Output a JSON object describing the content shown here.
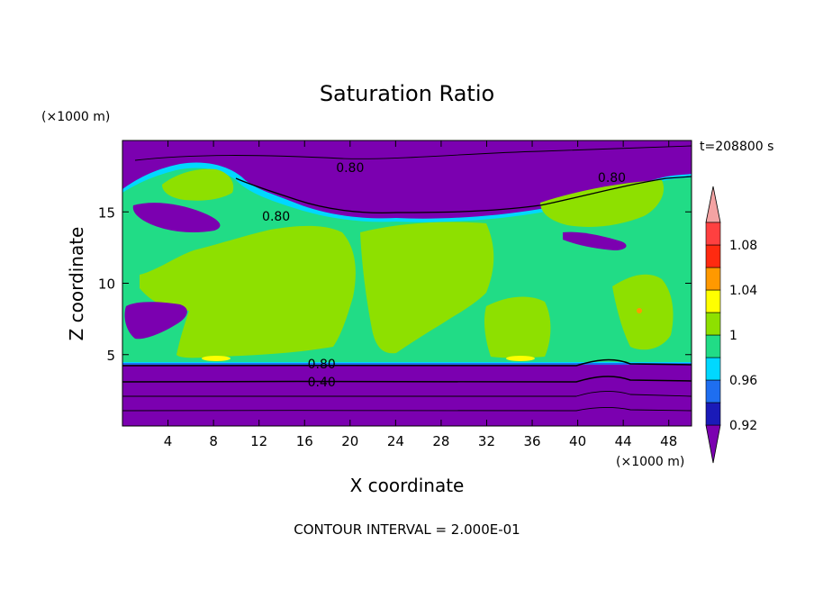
{
  "chart_data": {
    "type": "heatmap",
    "title": "Saturation Ratio",
    "xlabel": "X coordinate",
    "ylabel": "Z coordinate",
    "x_unit": "(×1000 m)",
    "y_unit": "(×1000 m)",
    "time_label": "t=208800 s",
    "footer": "CONTOUR INTERVAL = 2.000E-01",
    "xlim": [
      0,
      50
    ],
    "ylim": [
      0,
      20
    ],
    "x_ticks": [
      4,
      8,
      12,
      16,
      20,
      24,
      28,
      32,
      36,
      40,
      44,
      48
    ],
    "y_ticks": [
      5,
      10,
      15
    ],
    "contour_labels": [
      {
        "text": "0.80",
        "x": 20,
        "z": 18.1
      },
      {
        "text": "0.80",
        "x": 43,
        "z": 17.4
      },
      {
        "text": "0.80",
        "x": 13.5,
        "z": 14.7
      },
      {
        "text": "0.80",
        "x": 17.5,
        "z": 4.35
      },
      {
        "text": "0.40",
        "x": 17.5,
        "z": 3.1
      }
    ],
    "colorbar": {
      "levels": [
        0.92,
        0.94,
        0.96,
        0.98,
        1,
        1.02,
        1.04,
        1.06,
        1.08,
        1.1
      ],
      "tick_labels": [
        "0.92",
        "0.96",
        "1",
        "1.04",
        "1.08"
      ],
      "colors": [
        "#7b00b0",
        "#1a1ab8",
        "#1e6ef0",
        "#00d8ff",
        "#21dc86",
        "#8ee000",
        "#ffff00",
        "#ff9900",
        "#ff2a10",
        "#ff4040",
        "#f4a3a3"
      ]
    }
  }
}
